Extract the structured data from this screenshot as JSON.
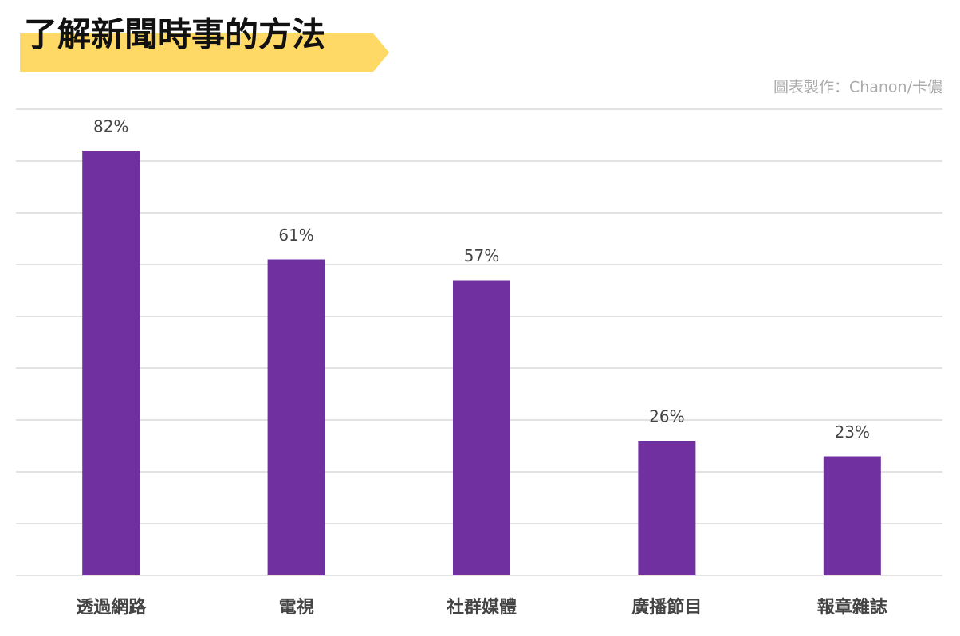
{
  "chart_data": {
    "type": "bar",
    "title": "了解新聞時事的方法",
    "credit": "圖表製作：Chanon/卡儂",
    "categories": [
      "透過網路",
      "電視",
      "社群媒體",
      "廣播節目",
      "報章雜誌"
    ],
    "values": [
      82,
      61,
      57,
      26,
      23
    ],
    "value_labels": [
      "82%",
      "61%",
      "57%",
      "26%",
      "23%"
    ],
    "color": "#7030a0",
    "ylim": [
      0,
      90
    ],
    "yticks": [
      0,
      10,
      20,
      30,
      40,
      50,
      60,
      70,
      80,
      90
    ],
    "grid": true
  }
}
